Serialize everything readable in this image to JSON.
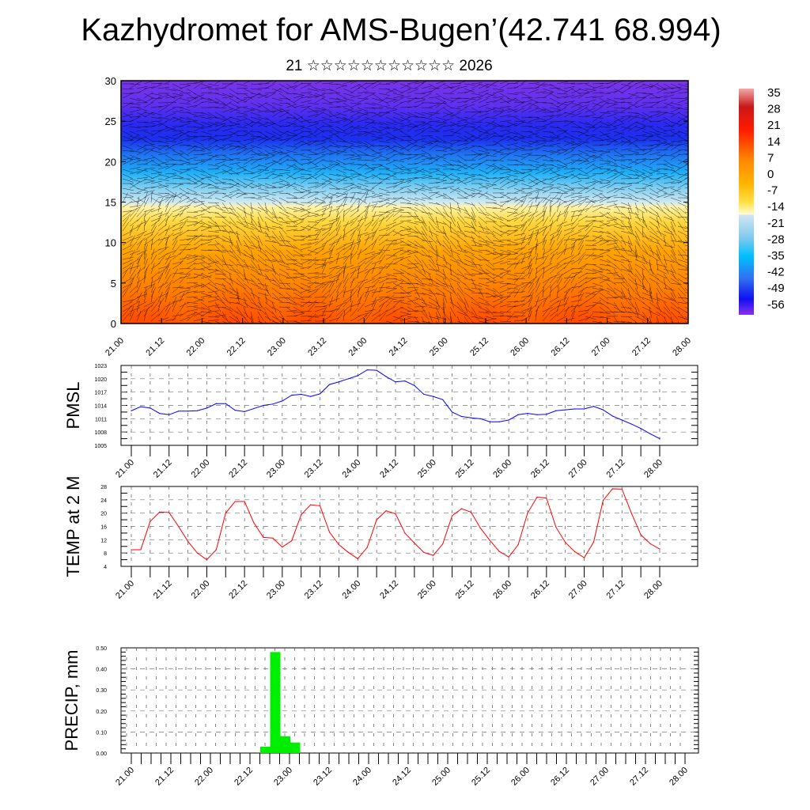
{
  "title": "Kazhydromet for AMS-Bugen’(42.741 68.994)",
  "subtitle": "21 ☆☆☆☆☆☆☆☆☆☆☆ 2026",
  "chart_data": [
    {
      "type": "heatmap",
      "name": "vertical-temperature-cross-section",
      "xlabel": "",
      "ylabel": "",
      "x_tick_labels": [
        "21.00",
        "21.12",
        "22.00",
        "22.12",
        "23.00",
        "23.12",
        "24.00",
        "24.12",
        "25.00",
        "25.12",
        "26.00",
        "26.12",
        "27.00",
        "27.12",
        "28.00"
      ],
      "y_tick_labels": [
        "0",
        "5",
        "10",
        "15",
        "20",
        "25",
        "30"
      ],
      "ylim": [
        0,
        30
      ],
      "colorbar_labels": [
        "35",
        "28",
        "21",
        "14",
        "7",
        "0",
        "-7",
        "-14",
        "-21",
        "-28",
        "-35",
        "-42",
        "-49",
        "-56"
      ],
      "colorbar_range": [
        -60,
        38
      ],
      "overlay": "wind streamlines/barbs"
    },
    {
      "type": "line",
      "name": "pmsl",
      "ylabel": "PMSL",
      "ylim": [
        1005,
        1023
      ],
      "y_tick_labels": [
        "1005",
        "1008",
        "1011",
        "1014",
        "1017",
        "1020",
        "1023"
      ],
      "x_tick_labels": [
        "21.00",
        "21.12",
        "22.00",
        "22.12",
        "23.00",
        "23.12",
        "24.00",
        "24.12",
        "25.00",
        "25.12",
        "26.00",
        "26.12",
        "27.00",
        "27.12",
        "28.00"
      ],
      "color": "#0000ff",
      "values": [
        1012.8,
        1013.7,
        1013.4,
        1012.2,
        1011.9,
        1012.7,
        1012.7,
        1012.8,
        1013.4,
        1014.4,
        1014.4,
        1012.9,
        1012.6,
        1013.3,
        1014.0,
        1014.3,
        1015.0,
        1016.3,
        1016.5,
        1016.0,
        1016.6,
        1018.7,
        1019.3,
        1020.0,
        1020.7,
        1022.0,
        1021.9,
        1020.5,
        1019.3,
        1019.5,
        1018.5,
        1016.5,
        1016.0,
        1015.3,
        1012.5,
        1011.5,
        1011.2,
        1011.0,
        1010.3,
        1010.3,
        1010.7,
        1011.9,
        1012.2,
        1011.9,
        1012.0,
        1012.8,
        1013.0,
        1013.2,
        1013.2,
        1013.8,
        1013.0,
        1011.6,
        1010.7,
        1009.8,
        1008.8,
        1007.6,
        1006.5
      ]
    },
    {
      "type": "line",
      "name": "temp2m",
      "ylabel": "TEMP at 2 M",
      "ylim": [
        4,
        28
      ],
      "y_tick_labels": [
        "4",
        "8",
        "12",
        "16",
        "20",
        "24",
        "28"
      ],
      "x_tick_labels": [
        "21.00",
        "21.12",
        "22.00",
        "22.12",
        "23.00",
        "23.12",
        "24.00",
        "24.12",
        "25.00",
        "25.12",
        "26.00",
        "26.12",
        "27.00",
        "27.12",
        "28.00"
      ],
      "color": "#ff0000",
      "values": [
        9,
        9,
        17.5,
        20.3,
        20.2,
        16,
        11.5,
        8,
        6,
        9,
        20,
        23.5,
        23.5,
        17,
        12.7,
        12.5,
        9.8,
        11.7,
        19.5,
        22.5,
        22.2,
        14.3,
        10.5,
        8.2,
        6.3,
        9.7,
        18,
        20.7,
        19.8,
        14,
        11,
        8.2,
        7.3,
        10.7,
        19.2,
        21.3,
        20.3,
        15.5,
        11.8,
        8.5,
        6.8,
        10.5,
        20,
        24.8,
        24.5,
        15.8,
        11.2,
        8.4,
        6.6,
        11.3,
        23.8,
        27.3,
        27.2,
        20,
        13.5,
        10.8,
        9.2
      ]
    },
    {
      "type": "bar",
      "name": "precip",
      "ylabel": "PRECIP, mm",
      "ylim": [
        0,
        0.5
      ],
      "y_tick_labels": [
        "0.00",
        "0.10",
        "0.20",
        "0.30",
        "0.40",
        "0.50"
      ],
      "x_tick_labels": [
        "21.00",
        "21.12",
        "22.00",
        "22.12",
        "23.00",
        "23.12",
        "24.00",
        "24.12",
        "25.00",
        "25.12",
        "26.00",
        "26.12",
        "27.00",
        "27.12",
        "28.00"
      ],
      "color": "#00ee00",
      "bars": [
        {
          "step": 14,
          "label": "22.18",
          "value": 0.03
        },
        {
          "step": 15,
          "label": "22.21",
          "value": 0.48
        },
        {
          "step": 16,
          "label": "23.00",
          "value": 0.08
        },
        {
          "step": 17,
          "label": "23.03",
          "value": 0.05
        }
      ]
    }
  ]
}
